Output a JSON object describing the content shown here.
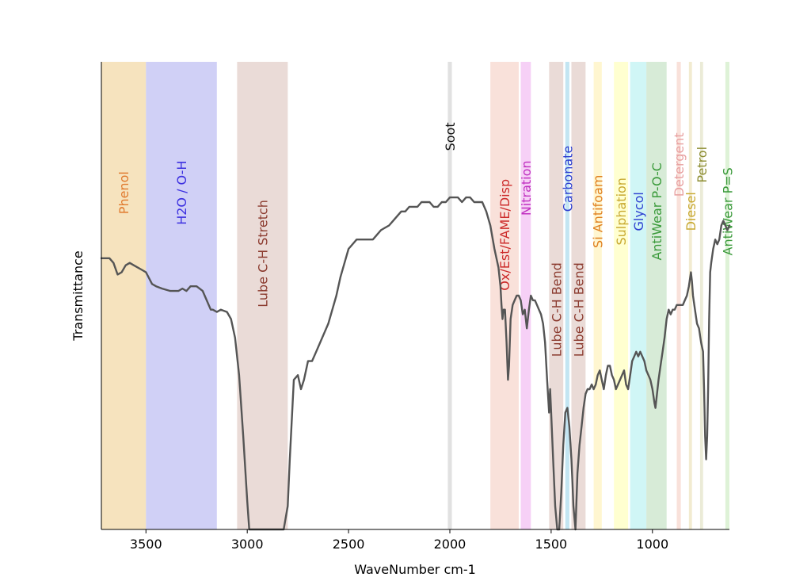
{
  "chart_data": {
    "type": "line",
    "title": "",
    "xlabel": "WaveNumber cm-1",
    "ylabel": "Transmittance",
    "xlim": [
      3720,
      620
    ],
    "ylim": [
      0,
      1
    ],
    "x_ticks": [
      3500,
      3000,
      2500,
      2000,
      1500,
      1000
    ],
    "y_ticks": [],
    "grid": false,
    "bands": [
      {
        "label": "Phenol",
        "start": 3720,
        "end": 3500,
        "fill": "#f5deb3",
        "text_color": "#e07a2e",
        "label_y": 0.72
      },
      {
        "label": "H2O / O-H",
        "start": 3500,
        "end": 3150,
        "fill": "#c8c8f5",
        "text_color": "#3b2fe0",
        "label_y": 0.72
      },
      {
        "label": "Lube C-H Stretch",
        "start": 3050,
        "end": 2800,
        "fill": "#e6d5d0",
        "text_color": "#8b3a2e",
        "label_y": 0.59
      },
      {
        "label": "Soot",
        "start": 2010,
        "end": 1990,
        "fill": "#dcdcdc",
        "text_color": "#111111",
        "label_y": 0.84
      },
      {
        "label": "Ox/Est/FAME/Disp",
        "start": 1800,
        "end": 1660,
        "fill": "#f8dcd4",
        "text_color": "#cc2a2a",
        "label_y": 0.63
      },
      {
        "label": "Nitration",
        "start": 1650,
        "end": 1600,
        "fill": "#f5c8f5",
        "text_color": "#c030c0",
        "label_y": 0.73
      },
      {
        "label": "Lube C-H Bend",
        "start": 1510,
        "end": 1440,
        "fill": "#e6d5d0",
        "text_color": "#8b3a2e",
        "label_y": 0.47
      },
      {
        "label": "Carbonate",
        "start": 1430,
        "end": 1410,
        "fill": "#b8e0f0",
        "text_color": "#2d3fd0",
        "label_y": 0.75
      },
      {
        "label": "Lube C-H Bend",
        "start": 1400,
        "end": 1330,
        "fill": "#e6d5d0",
        "text_color": "#8b3a2e",
        "label_y": 0.47
      },
      {
        "label": "Si Antifoam",
        "start": 1290,
        "end": 1250,
        "fill": "#fff5c8",
        "text_color": "#e08020",
        "label_y": 0.68
      },
      {
        "label": "Sulphation",
        "start": 1190,
        "end": 1120,
        "fill": "#ffffc8",
        "text_color": "#c8a830",
        "label_y": 0.68
      },
      {
        "label": "Glycol",
        "start": 1110,
        "end": 1030,
        "fill": "#c8f5f5",
        "text_color": "#2d3fd0",
        "label_y": 0.68
      },
      {
        "label": "AntiWear P-O-C",
        "start": 1030,
        "end": 930,
        "fill": "#d0e8d0",
        "text_color": "#3a9a3a",
        "label_y": 0.68
      },
      {
        "label": "Detergent",
        "start": 880,
        "end": 860,
        "fill": "#f8dcd4",
        "text_color": "#e8a0a0",
        "label_y": 0.78
      },
      {
        "label": "Diesel",
        "start": 820,
        "end": 805,
        "fill": "#f0e8c8",
        "text_color": "#c8a830",
        "label_y": 0.68
      },
      {
        "label": "Petrol",
        "start": 765,
        "end": 750,
        "fill": "#e8e8d0",
        "text_color": "#8c8c30",
        "label_y": 0.78
      },
      {
        "label": "AntiWear P=S",
        "start": 640,
        "end": 620,
        "fill": "#d8f0d0",
        "text_color": "#3a9a3a",
        "label_y": 0.68
      }
    ],
    "series": [
      {
        "name": "spectrum",
        "color": "#555555",
        "points": [
          [
            3720,
            0.58
          ],
          [
            3680,
            0.58
          ],
          [
            3660,
            0.57
          ],
          [
            3640,
            0.545
          ],
          [
            3620,
            0.55
          ],
          [
            3600,
            0.565
          ],
          [
            3580,
            0.57
          ],
          [
            3560,
            0.565
          ],
          [
            3520,
            0.555
          ],
          [
            3500,
            0.55
          ],
          [
            3470,
            0.525
          ],
          [
            3450,
            0.52
          ],
          [
            3420,
            0.515
          ],
          [
            3380,
            0.51
          ],
          [
            3340,
            0.51
          ],
          [
            3320,
            0.515
          ],
          [
            3300,
            0.51
          ],
          [
            3280,
            0.52
          ],
          [
            3250,
            0.52
          ],
          [
            3220,
            0.51
          ],
          [
            3200,
            0.49
          ],
          [
            3180,
            0.47
          ],
          [
            3170,
            0.47
          ],
          [
            3150,
            0.465
          ],
          [
            3130,
            0.47
          ],
          [
            3100,
            0.465
          ],
          [
            3080,
            0.45
          ],
          [
            3060,
            0.41
          ],
          [
            3040,
            0.33
          ],
          [
            3020,
            0.2
          ],
          [
            3000,
            0.06
          ],
          [
            2990,
            0.0
          ],
          [
            2960,
            0.0
          ],
          [
            2900,
            0.0
          ],
          [
            2850,
            0.0
          ],
          [
            2820,
            0.0
          ],
          [
            2800,
            0.05
          ],
          [
            2790,
            0.15
          ],
          [
            2770,
            0.32
          ],
          [
            2750,
            0.33
          ],
          [
            2735,
            0.3
          ],
          [
            2720,
            0.32
          ],
          [
            2700,
            0.36
          ],
          [
            2680,
            0.36
          ],
          [
            2660,
            0.38
          ],
          [
            2640,
            0.4
          ],
          [
            2620,
            0.42
          ],
          [
            2600,
            0.44
          ],
          [
            2580,
            0.47
          ],
          [
            2560,
            0.5
          ],
          [
            2540,
            0.54
          ],
          [
            2520,
            0.57
          ],
          [
            2500,
            0.6
          ],
          [
            2480,
            0.61
          ],
          [
            2460,
            0.62
          ],
          [
            2420,
            0.62
          ],
          [
            2400,
            0.62
          ],
          [
            2380,
            0.62
          ],
          [
            2360,
            0.63
          ],
          [
            2340,
            0.64
          ],
          [
            2320,
            0.645
          ],
          [
            2300,
            0.65
          ],
          [
            2280,
            0.66
          ],
          [
            2260,
            0.67
          ],
          [
            2240,
            0.68
          ],
          [
            2220,
            0.68
          ],
          [
            2200,
            0.69
          ],
          [
            2160,
            0.69
          ],
          [
            2140,
            0.7
          ],
          [
            2120,
            0.7
          ],
          [
            2100,
            0.7
          ],
          [
            2080,
            0.69
          ],
          [
            2060,
            0.69
          ],
          [
            2040,
            0.7
          ],
          [
            2020,
            0.7
          ],
          [
            2000,
            0.71
          ],
          [
            1980,
            0.71
          ],
          [
            1960,
            0.71
          ],
          [
            1940,
            0.7
          ],
          [
            1920,
            0.71
          ],
          [
            1900,
            0.71
          ],
          [
            1880,
            0.7
          ],
          [
            1860,
            0.7
          ],
          [
            1840,
            0.7
          ],
          [
            1820,
            0.68
          ],
          [
            1800,
            0.65
          ],
          [
            1780,
            0.6
          ],
          [
            1760,
            0.56
          ],
          [
            1750,
            0.52
          ],
          [
            1745,
            0.48
          ],
          [
            1740,
            0.45
          ],
          [
            1735,
            0.47
          ],
          [
            1728,
            0.47
          ],
          [
            1720,
            0.4
          ],
          [
            1713,
            0.32
          ],
          [
            1708,
            0.35
          ],
          [
            1700,
            0.45
          ],
          [
            1690,
            0.48
          ],
          [
            1680,
            0.49
          ],
          [
            1670,
            0.5
          ],
          [
            1660,
            0.5
          ],
          [
            1650,
            0.49
          ],
          [
            1640,
            0.46
          ],
          [
            1630,
            0.47
          ],
          [
            1620,
            0.43
          ],
          [
            1610,
            0.47
          ],
          [
            1600,
            0.5
          ],
          [
            1590,
            0.49
          ],
          [
            1580,
            0.49
          ],
          [
            1570,
            0.48
          ],
          [
            1560,
            0.47
          ],
          [
            1550,
            0.46
          ],
          [
            1540,
            0.44
          ],
          [
            1530,
            0.4
          ],
          [
            1520,
            0.32
          ],
          [
            1510,
            0.25
          ],
          [
            1505,
            0.3
          ],
          [
            1500,
            0.25
          ],
          [
            1490,
            0.15
          ],
          [
            1480,
            0.05
          ],
          [
            1470,
            0.0
          ],
          [
            1460,
            0.0
          ],
          [
            1450,
            0.08
          ],
          [
            1440,
            0.18
          ],
          [
            1430,
            0.25
          ],
          [
            1420,
            0.26
          ],
          [
            1410,
            0.22
          ],
          [
            1400,
            0.15
          ],
          [
            1395,
            0.1
          ],
          [
            1390,
            0.05
          ],
          [
            1380,
            0.0
          ],
          [
            1370,
            0.12
          ],
          [
            1360,
            0.18
          ],
          [
            1350,
            0.22
          ],
          [
            1340,
            0.26
          ],
          [
            1330,
            0.29
          ],
          [
            1320,
            0.3
          ],
          [
            1310,
            0.3
          ],
          [
            1300,
            0.31
          ],
          [
            1290,
            0.3
          ],
          [
            1280,
            0.31
          ],
          [
            1270,
            0.33
          ],
          [
            1260,
            0.34
          ],
          [
            1250,
            0.32
          ],
          [
            1240,
            0.3
          ],
          [
            1230,
            0.33
          ],
          [
            1220,
            0.35
          ],
          [
            1210,
            0.35
          ],
          [
            1200,
            0.33
          ],
          [
            1190,
            0.32
          ],
          [
            1180,
            0.3
          ],
          [
            1170,
            0.31
          ],
          [
            1160,
            0.32
          ],
          [
            1150,
            0.33
          ],
          [
            1140,
            0.34
          ],
          [
            1130,
            0.31
          ],
          [
            1120,
            0.3
          ],
          [
            1110,
            0.33
          ],
          [
            1100,
            0.36
          ],
          [
            1090,
            0.37
          ],
          [
            1080,
            0.38
          ],
          [
            1070,
            0.37
          ],
          [
            1060,
            0.38
          ],
          [
            1050,
            0.37
          ],
          [
            1040,
            0.36
          ],
          [
            1030,
            0.34
          ],
          [
            1020,
            0.33
          ],
          [
            1010,
            0.32
          ],
          [
            1000,
            0.3
          ],
          [
            990,
            0.27
          ],
          [
            985,
            0.26
          ],
          [
            980,
            0.28
          ],
          [
            970,
            0.32
          ],
          [
            960,
            0.35
          ],
          [
            950,
            0.38
          ],
          [
            940,
            0.41
          ],
          [
            930,
            0.45
          ],
          [
            920,
            0.47
          ],
          [
            910,
            0.46
          ],
          [
            900,
            0.47
          ],
          [
            890,
            0.47
          ],
          [
            880,
            0.48
          ],
          [
            870,
            0.48
          ],
          [
            860,
            0.48
          ],
          [
            850,
            0.48
          ],
          [
            840,
            0.49
          ],
          [
            830,
            0.5
          ],
          [
            820,
            0.52
          ],
          [
            810,
            0.55
          ],
          [
            805,
            0.53
          ],
          [
            800,
            0.5
          ],
          [
            790,
            0.47
          ],
          [
            780,
            0.44
          ],
          [
            770,
            0.43
          ],
          [
            760,
            0.4
          ],
          [
            750,
            0.38
          ],
          [
            745,
            0.3
          ],
          [
            740,
            0.2
          ],
          [
            735,
            0.15
          ],
          [
            730,
            0.2
          ],
          [
            725,
            0.3
          ],
          [
            720,
            0.45
          ],
          [
            715,
            0.55
          ],
          [
            710,
            0.57
          ],
          [
            700,
            0.6
          ],
          [
            690,
            0.62
          ],
          [
            680,
            0.61
          ],
          [
            670,
            0.62
          ],
          [
            660,
            0.65
          ],
          [
            650,
            0.66
          ],
          [
            640,
            0.65
          ],
          [
            630,
            0.64
          ],
          [
            620,
            0.65
          ]
        ]
      }
    ]
  }
}
